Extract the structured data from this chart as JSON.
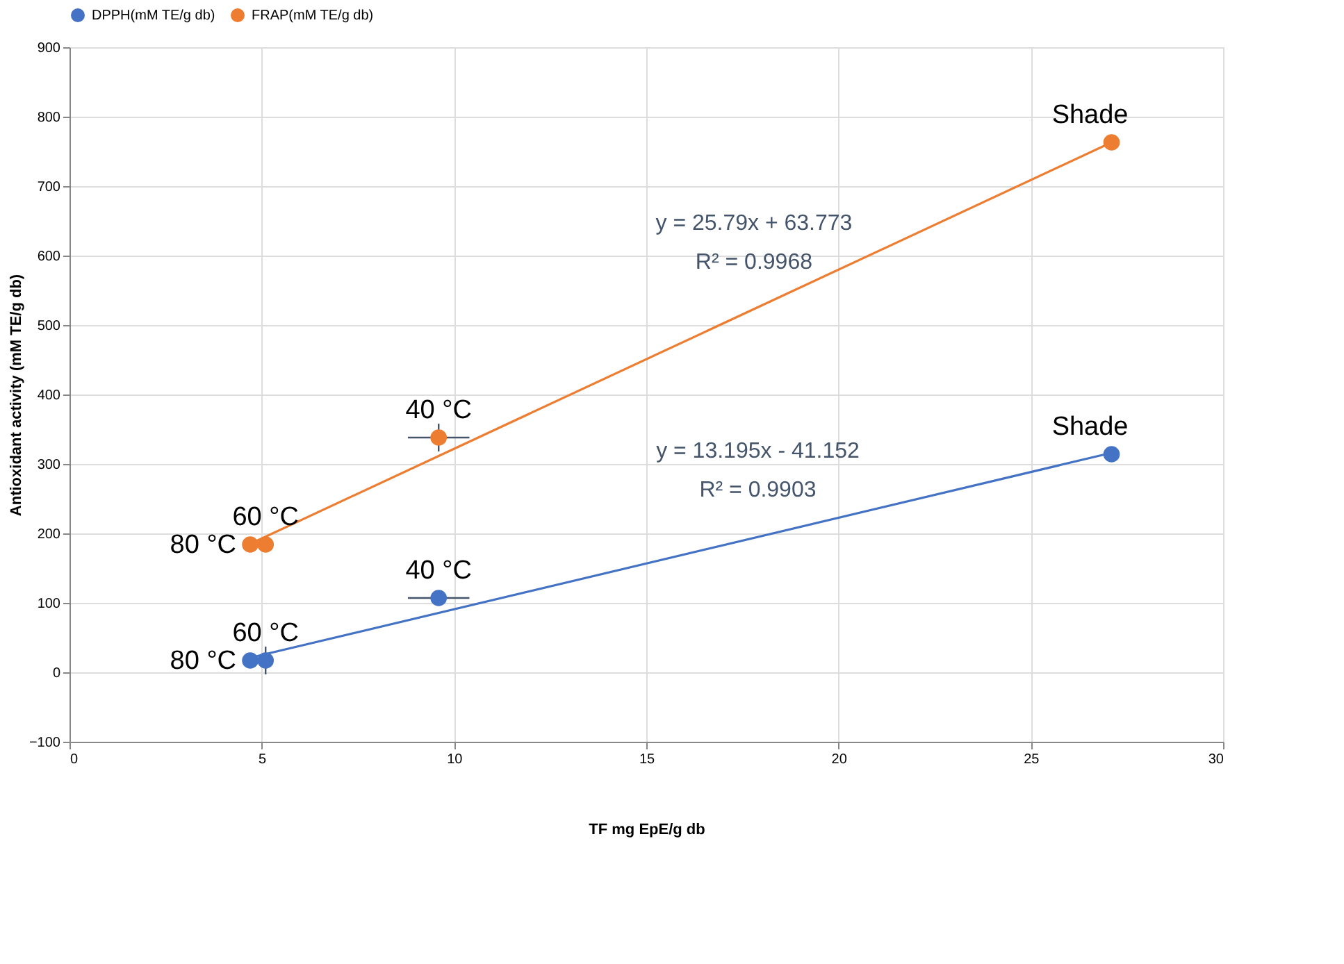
{
  "chart_data": {
    "type": "scatter",
    "xlabel": "TF mg EpE/g db",
    "ylabel": "Antioxidant activity (mM TE/g db)",
    "xlim": [
      0,
      30
    ],
    "xticks": [
      0,
      5,
      10,
      15,
      20,
      25,
      30
    ],
    "ylim": [
      -100,
      900
    ],
    "yticks": [
      -100,
      0,
      100,
      200,
      300,
      400,
      500,
      600,
      700,
      800,
      900
    ],
    "grid": true,
    "legend": "top",
    "series": [
      {
        "name": "DPPH(mM TE/g db)",
        "color": "#4472c4",
        "marker": "circle",
        "x": [
          4.7,
          5.1,
          9.6,
          27.1
        ],
        "values": [
          17,
          17,
          107,
          314
        ],
        "errors": [
          null,
          20,
          null,
          null
        ],
        "xerrors": [
          null,
          null,
          0.8,
          null
        ]
      },
      {
        "name": "FRAP(mM TE/g db)",
        "color": "#ed7d31",
        "marker": "circle",
        "x": [
          4.7,
          5.1,
          9.6,
          27.1
        ],
        "values": [
          184,
          184,
          338,
          763
        ],
        "errors": [
          null,
          null,
          20,
          null
        ],
        "xerrors": [
          null,
          null,
          0.8,
          null
        ]
      },
      {
        "color": "#4472c4",
        "type": "line",
        "marker": "none",
        "x": [
          4.7,
          27.1
        ],
        "values": [
          21,
          316
        ]
      },
      {
        "color": "#ed7d31",
        "type": "line",
        "marker": "none",
        "x": [
          4.7,
          27.1
        ],
        "values": [
          185,
          763
        ]
      }
    ],
    "annotations": [
      {
        "text": "Shade",
        "x": 27.1,
        "y": 763
      },
      {
        "text": "Shade",
        "x": 27.1,
        "y": 314
      },
      {
        "text": "40 °C",
        "x": 9.6,
        "y": 338
      },
      {
        "text": "40 °C",
        "x": 9.6,
        "y": 107
      },
      {
        "text": "60 °C",
        "x": 5.1,
        "y": 184
      },
      {
        "text": "60 °C",
        "x": 5.1,
        "y": 17
      },
      {
        "text": "80 °C",
        "x": 4.7,
        "y": 184
      },
      {
        "text": "80 °C",
        "x": 4.7,
        "y": 17
      },
      {
        "text": "y = 25.79x + 63.773\nR² = 0.9968",
        "x": 17.8,
        "y": 523
      },
      {
        "text": "y = 13.195x - 41.152\nR² = 0.9903",
        "x": 17.9,
        "y": 195
      }
    ]
  }
}
